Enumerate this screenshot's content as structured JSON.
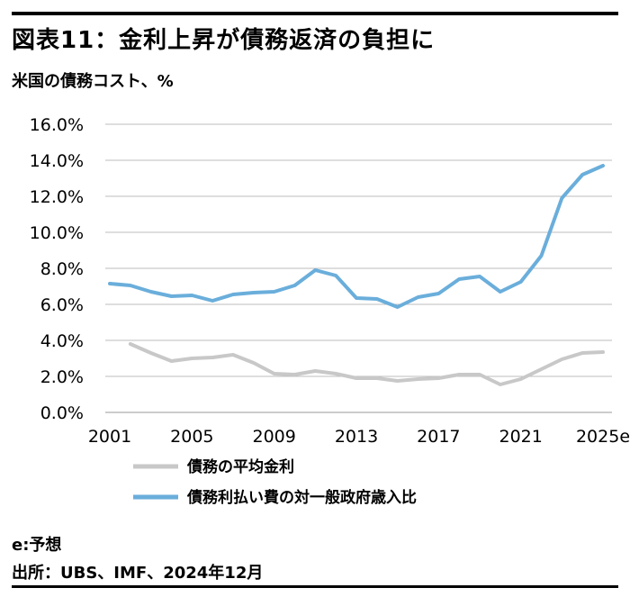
{
  "title": "図表11：金利上昇が債務返済の負担に",
  "subtitle": "米国の債務コスト、%",
  "footnote": "e:予想",
  "source": "出所：UBS、IMF、2024年12月",
  "chart_data": {
    "type": "line",
    "ylim": [
      0,
      16
    ],
    "xlim": [
      2001,
      2025
    ],
    "y_ticks": [
      {
        "value": 0,
        "label": "0.0%"
      },
      {
        "value": 2,
        "label": "2.0%"
      },
      {
        "value": 4,
        "label": "4.0%"
      },
      {
        "value": 6,
        "label": "6.0%"
      },
      {
        "value": 8,
        "label": "8.0%"
      },
      {
        "value": 10,
        "label": "10.0%"
      },
      {
        "value": 12,
        "label": "12.0%"
      },
      {
        "value": 14,
        "label": "14.0%"
      },
      {
        "value": 16,
        "label": "16.0%"
      }
    ],
    "x_ticks": [
      {
        "value": 2001,
        "label": "2001"
      },
      {
        "value": 2005,
        "label": "2005"
      },
      {
        "value": 2009,
        "label": "2009"
      },
      {
        "value": 2013,
        "label": "2013"
      },
      {
        "value": 2017,
        "label": "2017"
      },
      {
        "value": 2021,
        "label": "2021"
      },
      {
        "value": 2025,
        "label": "2025e"
      }
    ],
    "grid": true,
    "legend_position": "bottom",
    "series": [
      {
        "name": "債務の平均金利",
        "color": "#c8c8c8",
        "x": [
          2002,
          2003,
          2004,
          2005,
          2006,
          2007,
          2008,
          2009,
          2010,
          2011,
          2012,
          2013,
          2014,
          2015,
          2016,
          2017,
          2018,
          2019,
          2020,
          2021,
          2022,
          2023,
          2024,
          2025
        ],
        "values": [
          3.8,
          3.3,
          2.85,
          3.0,
          3.05,
          3.2,
          2.75,
          2.15,
          2.1,
          2.3,
          2.15,
          1.9,
          1.9,
          1.75,
          1.85,
          1.9,
          2.1,
          2.1,
          1.55,
          1.85,
          2.4,
          2.95,
          3.3,
          3.35
        ]
      },
      {
        "name": "債務利払い費の対一般政府歳入比",
        "color": "#6aaedb",
        "x": [
          2001,
          2002,
          2003,
          2004,
          2005,
          2006,
          2007,
          2008,
          2009,
          2010,
          2011,
          2012,
          2013,
          2014,
          2015,
          2016,
          2017,
          2018,
          2019,
          2020,
          2021,
          2022,
          2023,
          2024,
          2025
        ],
        "values": [
          7.15,
          7.05,
          6.7,
          6.45,
          6.5,
          6.2,
          6.55,
          6.65,
          6.7,
          7.05,
          7.9,
          7.6,
          6.35,
          6.3,
          5.85,
          6.4,
          6.6,
          7.4,
          7.55,
          6.7,
          7.25,
          8.7,
          11.9,
          13.2,
          13.7
        ]
      }
    ]
  }
}
